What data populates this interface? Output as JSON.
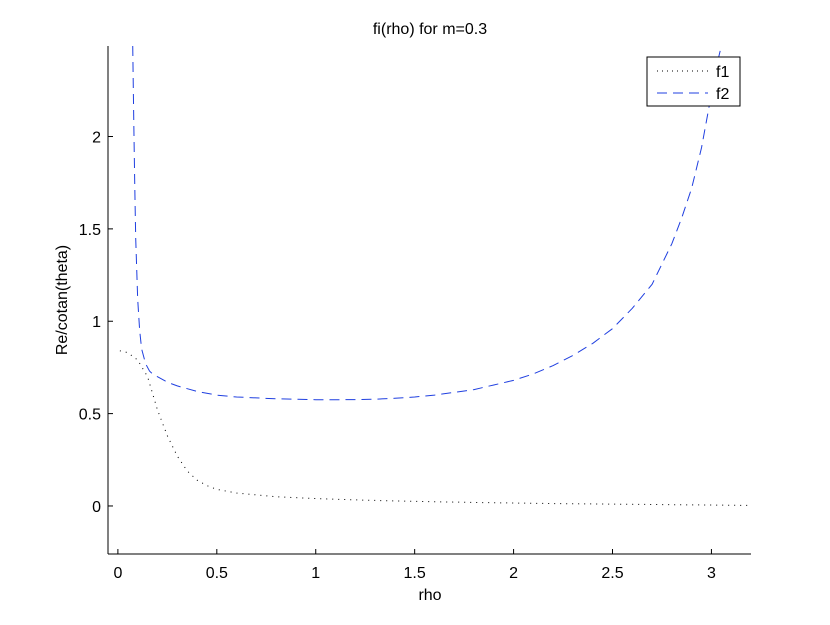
{
  "chart_data": {
    "type": "line",
    "title": "fi(rho) for m=0.3",
    "xlabel": "rho",
    "ylabel": "Re/cotan(theta)",
    "xlim": [
      -0.05,
      3.2
    ],
    "ylim": [
      -0.26,
      2.49
    ],
    "xticks": [
      0,
      0.5,
      1,
      1.5,
      2,
      2.5,
      3
    ],
    "xtick_labels": [
      "0",
      "0.5",
      "1",
      "1.5",
      "2",
      "2.5",
      "3"
    ],
    "yticks": [
      0,
      0.5,
      1,
      1.5,
      2
    ],
    "ytick_labels": [
      "0",
      "0.5",
      "1",
      "1.5",
      "2"
    ],
    "grid": false,
    "legend": {
      "placement": "top-right",
      "entries": [
        "f1",
        "f2"
      ]
    },
    "series": [
      {
        "name": "f1",
        "style": "dotted",
        "color": "#000000",
        "x": [
          0.01,
          0.05,
          0.1,
          0.15,
          0.2,
          0.25,
          0.3,
          0.35,
          0.4,
          0.45,
          0.5,
          0.6,
          0.7,
          0.8,
          0.9,
          1.0,
          1.2,
          1.4,
          1.6,
          1.8,
          2.0,
          2.2,
          2.4,
          2.6,
          2.8,
          3.0,
          3.2
        ],
        "y": [
          0.84,
          0.83,
          0.79,
          0.7,
          0.52,
          0.38,
          0.27,
          0.19,
          0.14,
          0.11,
          0.09,
          0.07,
          0.06,
          0.05,
          0.045,
          0.04,
          0.033,
          0.027,
          0.023,
          0.019,
          0.016,
          0.013,
          0.011,
          0.009,
          0.007,
          0.005,
          0.003
        ]
      },
      {
        "name": "f2",
        "style": "dashed",
        "color": "#1f3fe0",
        "x": [
          0.075,
          0.08,
          0.085,
          0.09,
          0.1,
          0.11,
          0.12,
          0.14,
          0.16,
          0.18,
          0.2,
          0.25,
          0.3,
          0.4,
          0.5,
          0.6,
          0.7,
          0.8,
          0.9,
          1.0,
          1.1,
          1.2,
          1.3,
          1.4,
          1.5,
          1.6,
          1.7,
          1.8,
          1.9,
          2.0,
          2.1,
          2.2,
          2.3,
          2.4,
          2.5,
          2.6,
          2.7,
          2.8,
          2.85,
          2.9,
          2.95,
          3.0,
          3.03,
          3.05
        ],
        "y": [
          2.49,
          2.1,
          1.75,
          1.45,
          1.12,
          0.95,
          0.85,
          0.77,
          0.73,
          0.71,
          0.7,
          0.67,
          0.65,
          0.62,
          0.6,
          0.59,
          0.585,
          0.58,
          0.578,
          0.575,
          0.575,
          0.576,
          0.578,
          0.583,
          0.59,
          0.6,
          0.615,
          0.63,
          0.655,
          0.68,
          0.715,
          0.76,
          0.815,
          0.88,
          0.96,
          1.07,
          1.2,
          1.42,
          1.56,
          1.72,
          1.94,
          2.23,
          2.4,
          2.49
        ]
      }
    ]
  }
}
